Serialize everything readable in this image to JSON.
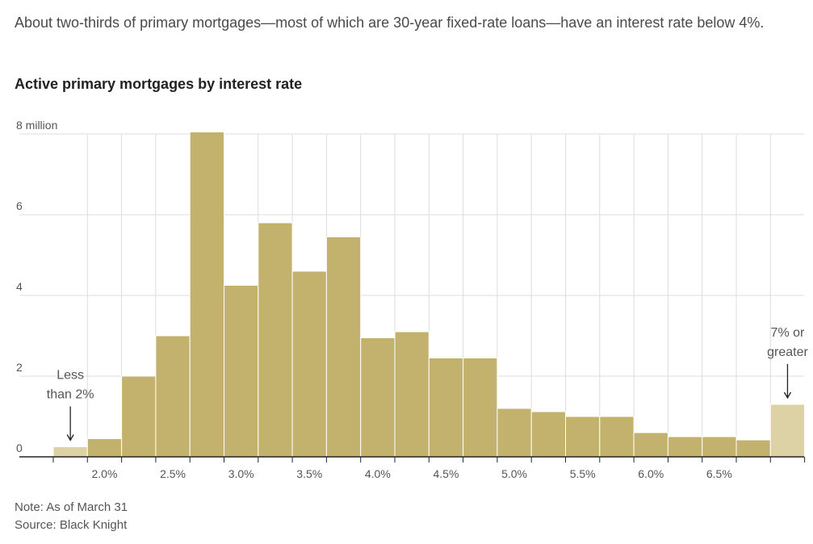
{
  "subtitle": "About two-thirds of primary mortgages—most of which are 30-year fixed-rate loans—have an interest rate below 4%.",
  "title": "Active primary mortgages by interest rate",
  "note": "Note: As of March 31",
  "source": "Source: Black Knight",
  "colors": {
    "bar": "#c3b26e",
    "bar_light": "#ddd2a6",
    "bar_stroke": "#ffffff",
    "grid": "#dddddd",
    "axis": "#222222",
    "text": "#555555"
  },
  "chart_data": {
    "type": "bar",
    "unit_label": "8 million",
    "y_ticks": [
      0,
      2,
      4,
      6,
      8
    ],
    "ylim": [
      0,
      8
    ],
    "x_tick_labels": [
      "2.0%",
      "2.5%",
      "3.0%",
      "3.5%",
      "4.0%",
      "4.5%",
      "5.0%",
      "5.5%",
      "6.0%",
      "6.5%"
    ],
    "grid": true,
    "bins": [
      {
        "value": 0.25,
        "highlight": true
      },
      {
        "value": 0.45,
        "highlight": false
      },
      {
        "value": 2.0,
        "highlight": false
      },
      {
        "value": 3.0,
        "highlight": false
      },
      {
        "value": 8.05,
        "highlight": false
      },
      {
        "value": 4.25,
        "highlight": false
      },
      {
        "value": 5.8,
        "highlight": false
      },
      {
        "value": 4.6,
        "highlight": false
      },
      {
        "value": 5.45,
        "highlight": false
      },
      {
        "value": 2.95,
        "highlight": false
      },
      {
        "value": 3.1,
        "highlight": false
      },
      {
        "value": 2.45,
        "highlight": false
      },
      {
        "value": 2.45,
        "highlight": false
      },
      {
        "value": 1.2,
        "highlight": false
      },
      {
        "value": 1.12,
        "highlight": false
      },
      {
        "value": 1.0,
        "highlight": false
      },
      {
        "value": 1.0,
        "highlight": false
      },
      {
        "value": 0.6,
        "highlight": false
      },
      {
        "value": 0.5,
        "highlight": false
      },
      {
        "value": 0.5,
        "highlight": false
      },
      {
        "value": 0.42,
        "highlight": false
      },
      {
        "value": 1.3,
        "highlight": true
      }
    ],
    "annotations": [
      {
        "lines": [
          "Less",
          "than 2%"
        ],
        "bin": 0
      },
      {
        "lines": [
          "7% or",
          "greater"
        ],
        "bin": 21
      }
    ]
  }
}
